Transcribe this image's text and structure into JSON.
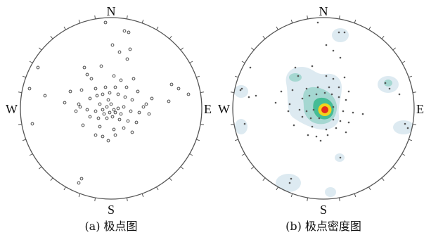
{
  "figure": {
    "panels": [
      {
        "id": "a",
        "caption": "(a) 极点图",
        "directions": {
          "n": "N",
          "s": "S",
          "e": "E",
          "w": "W"
        }
      },
      {
        "id": "b",
        "caption": "(b) 极点密度图",
        "directions": {
          "n": "N",
          "s": "S",
          "e": "E",
          "w": "W"
        }
      }
    ],
    "colors": {
      "outline": "#555555",
      "pole_marker": "#333333",
      "density_low": "#d7e6ee",
      "density_mid": "#7fc9c0",
      "density_high": "#33b58f",
      "density_peak_yellow": "#f3d21c",
      "density_peak_red": "#e32b1d"
    }
  }
}
